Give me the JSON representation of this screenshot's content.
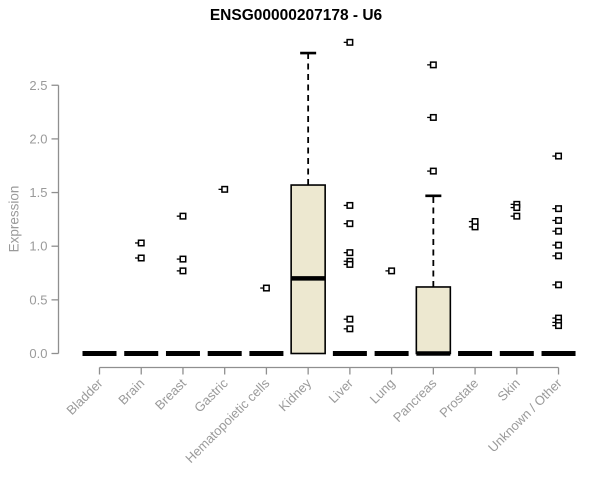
{
  "chart_data": {
    "type": "boxplot",
    "title": "ENSG00000207178 - U6",
    "ylabel": "Expression",
    "xlabel": "",
    "y_ticks": [
      0.0,
      0.5,
      1.0,
      1.5,
      2.0,
      2.5
    ],
    "ylim": [
      0,
      2.95
    ],
    "grid": false,
    "legend": "none",
    "colors": {
      "box_fill": "#EDE8D0",
      "box_stroke": "#000000",
      "axis": "#8f8f8f",
      "tick_label": "#9a9a9a",
      "title": "#000000",
      "background": "#ffffff"
    },
    "categories": [
      "Bladder",
      "Brain",
      "Breast",
      "Gastric",
      "Hematopoietic cells",
      "Kidney",
      "Liver",
      "Lung",
      "Pancreas",
      "Prostate",
      "Skin",
      "Unknown / Other"
    ],
    "boxes": [
      {
        "category": "Bladder",
        "q1": 0,
        "median": 0,
        "q3": 0,
        "whisker_low": 0,
        "whisker_high": 0,
        "outliers": []
      },
      {
        "category": "Brain",
        "q1": 0,
        "median": 0,
        "q3": 0,
        "whisker_low": 0,
        "whisker_high": 0,
        "outliers": [
          1.03,
          0.89
        ]
      },
      {
        "category": "Breast",
        "q1": 0,
        "median": 0,
        "q3": 0,
        "whisker_low": 0,
        "whisker_high": 0,
        "outliers": [
          1.28,
          0.88,
          0.77
        ]
      },
      {
        "category": "Gastric",
        "q1": 0,
        "median": 0,
        "q3": 0,
        "whisker_low": 0,
        "whisker_high": 0,
        "outliers": [
          1.53
        ]
      },
      {
        "category": "Hematopoietic cells",
        "q1": 0,
        "median": 0,
        "q3": 0,
        "whisker_low": 0,
        "whisker_high": 0,
        "outliers": [
          0.61
        ]
      },
      {
        "category": "Kidney",
        "q1": 0,
        "median": 0.7,
        "q3": 1.57,
        "whisker_low": 0,
        "whisker_high": 2.8,
        "outliers": []
      },
      {
        "category": "Liver",
        "q1": 0,
        "median": 0,
        "q3": 0,
        "whisker_low": 0,
        "whisker_high": 0,
        "outliers": [
          2.9,
          1.38,
          1.21,
          0.94,
          0.86,
          0.83,
          0.32,
          0.23
        ]
      },
      {
        "category": "Lung",
        "q1": 0,
        "median": 0,
        "q3": 0,
        "whisker_low": 0,
        "whisker_high": 0,
        "outliers": [
          0.77
        ]
      },
      {
        "category": "Pancreas",
        "q1": 0,
        "median": 0,
        "q3": 0.62,
        "whisker_low": 0,
        "whisker_high": 1.47,
        "outliers": [
          2.69,
          2.2,
          1.7
        ]
      },
      {
        "category": "Prostate",
        "q1": 0,
        "median": 0,
        "q3": 0,
        "whisker_low": 0,
        "whisker_high": 0,
        "outliers": [
          1.23,
          1.18
        ]
      },
      {
        "category": "Skin",
        "q1": 0,
        "median": 0,
        "q3": 0,
        "whisker_low": 0,
        "whisker_high": 0,
        "outliers": [
          1.39,
          1.36,
          1.28
        ]
      },
      {
        "category": "Unknown / Other",
        "q1": 0,
        "median": 0,
        "q3": 0,
        "whisker_low": 0,
        "whisker_high": 0,
        "outliers": [
          1.84,
          1.35,
          1.24,
          1.14,
          1.01,
          0.91,
          0.64,
          0.33,
          0.29,
          0.26
        ]
      }
    ]
  }
}
